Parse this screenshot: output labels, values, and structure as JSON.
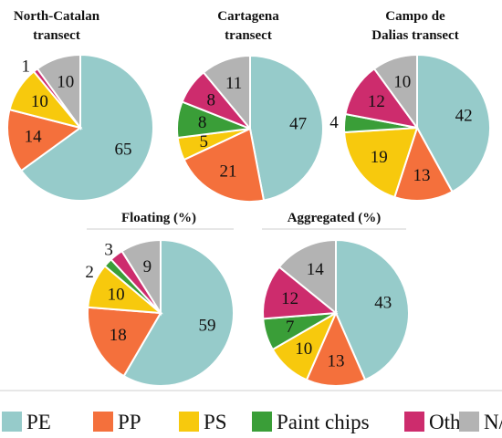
{
  "legend": {
    "items": [
      {
        "key": "PE",
        "label": "PE",
        "color": "#96cbca"
      },
      {
        "key": "PP",
        "label": "PP",
        "color": "#f4703c"
      },
      {
        "key": "PS",
        "label": "PS",
        "color": "#f7c90d"
      },
      {
        "key": "Paint chips",
        "label": "Paint chips",
        "color": "#3a9e38"
      },
      {
        "key": "Other",
        "label": "Other",
        "color": "#cd2c6d"
      },
      {
        "key": "N/S",
        "label": "N/S",
        "color": "#b3b3b3"
      }
    ]
  },
  "chart_data": [
    {
      "type": "pie",
      "title_lines": [
        "North-Catalan",
        "transect"
      ],
      "slices": [
        {
          "category": "PE",
          "value": 65,
          "label": "65"
        },
        {
          "category": "PP",
          "value": 14,
          "label": "14"
        },
        {
          "category": "PS",
          "value": 10,
          "label": "10"
        },
        {
          "category": "Other",
          "value": 1,
          "label": "1"
        },
        {
          "category": "N/S",
          "value": 10,
          "label": "10"
        }
      ]
    },
    {
      "type": "pie",
      "title_lines": [
        "Cartagena",
        "transect"
      ],
      "slices": [
        {
          "category": "PE",
          "value": 47,
          "label": "47"
        },
        {
          "category": "PP",
          "value": 21,
          "label": "21"
        },
        {
          "category": "PS",
          "value": 5,
          "label": "5"
        },
        {
          "category": "Paint chips",
          "value": 8,
          "label": "8"
        },
        {
          "category": "Other",
          "value": 8,
          "label": "8"
        },
        {
          "category": "N/S",
          "value": 11,
          "label": "11"
        }
      ]
    },
    {
      "type": "pie",
      "title_lines": [
        "Campo de",
        "Dalias transect"
      ],
      "slices": [
        {
          "category": "PE",
          "value": 42,
          "label": "42"
        },
        {
          "category": "PP",
          "value": 13,
          "label": "13"
        },
        {
          "category": "PS",
          "value": 19,
          "label": "19"
        },
        {
          "category": "Paint chips",
          "value": 4,
          "label": "4"
        },
        {
          "category": "Other",
          "value": 12,
          "label": "12"
        },
        {
          "category": "N/S",
          "value": 10,
          "label": "10"
        }
      ]
    },
    {
      "type": "pie",
      "title_lines": [
        "Floating (%)"
      ],
      "slices": [
        {
          "category": "PE",
          "value": 59,
          "label": "59"
        },
        {
          "category": "PP",
          "value": 18,
          "label": "18"
        },
        {
          "category": "PS",
          "value": 10,
          "label": "10"
        },
        {
          "category": "Paint chips",
          "value": 2,
          "label": "2"
        },
        {
          "category": "Other",
          "value": 3,
          "label": "3"
        },
        {
          "category": "N/S",
          "value": 9,
          "label": "9"
        }
      ]
    },
    {
      "type": "pie",
      "title_lines": [
        "Aggregated (%)"
      ],
      "slices": [
        {
          "category": "PE",
          "value": 43,
          "label": "43"
        },
        {
          "category": "PP",
          "value": 13,
          "label": "13"
        },
        {
          "category": "PS",
          "value": 10,
          "label": "10"
        },
        {
          "category": "Paint chips",
          "value": 7,
          "label": "7"
        },
        {
          "category": "Other",
          "value": 12,
          "label": "12"
        },
        {
          "category": "N/S",
          "value": 14,
          "label": "14"
        }
      ]
    }
  ]
}
